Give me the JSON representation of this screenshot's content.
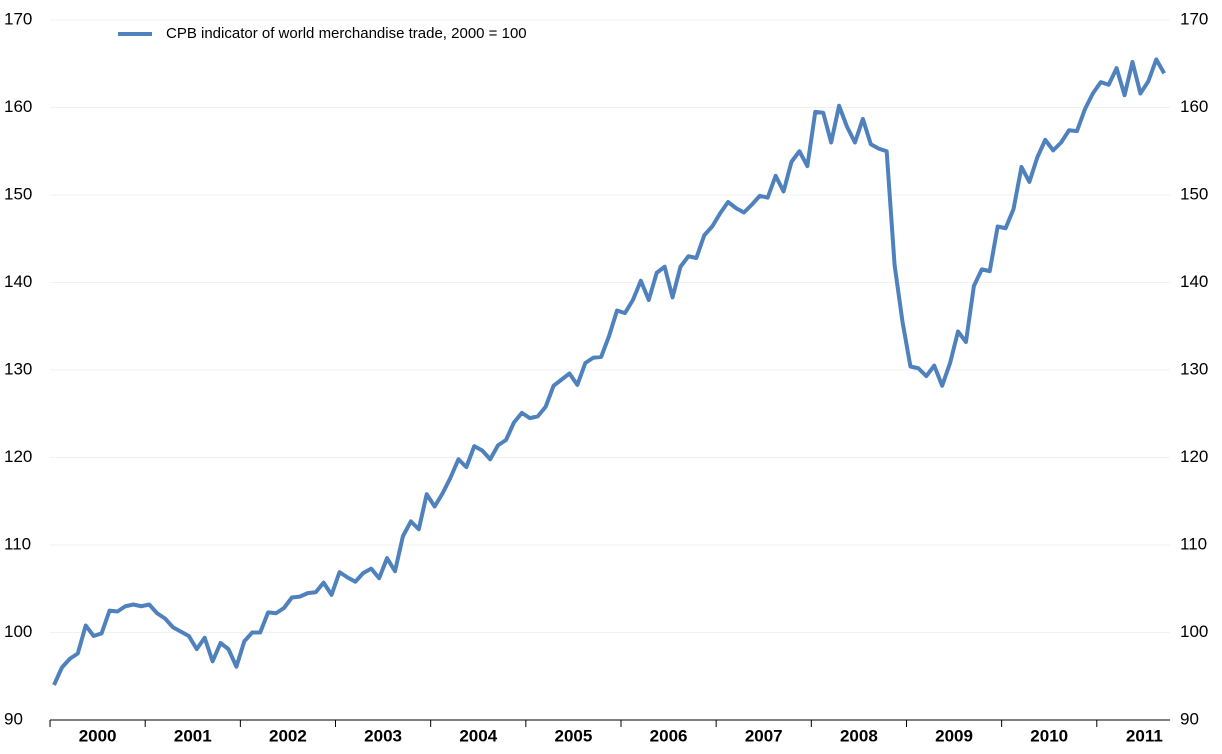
{
  "chart_data": {
    "type": "line",
    "categories": [
      null,
      null,
      null,
      null,
      null,
      "2000",
      null,
      null,
      null,
      null,
      null,
      null,
      null,
      null,
      null,
      null,
      null,
      "2001",
      null,
      null,
      null,
      null,
      null,
      null,
      null,
      null,
      null,
      null,
      null,
      "2002",
      null,
      null,
      null,
      null,
      null,
      null,
      null,
      null,
      null,
      null,
      null,
      "2003",
      null,
      null,
      null,
      null,
      null,
      null,
      null,
      null,
      null,
      null,
      null,
      "2004",
      null,
      null,
      null,
      null,
      null,
      null,
      null,
      null,
      null,
      null,
      null,
      "2005",
      null,
      null,
      null,
      null,
      null,
      null,
      null,
      null,
      null,
      null,
      null,
      "2006",
      null,
      null,
      null,
      null,
      null,
      null,
      null,
      null,
      null,
      null,
      null,
      "2007",
      null,
      null,
      null,
      null,
      null,
      null,
      null,
      null,
      null,
      null,
      null,
      "2008",
      null,
      null,
      null,
      null,
      null,
      null,
      null,
      null,
      null,
      null,
      null,
      "2009",
      null,
      null,
      null,
      null,
      null,
      null,
      null,
      null,
      null,
      null,
      null,
      "2010",
      null,
      null,
      null,
      null,
      null,
      null,
      null,
      null,
      null,
      null,
      null,
      "2011",
      null,
      null,
      null
    ],
    "series": [
      {
        "name": "CPB indicator of world merchandise trade, 2000 = 100",
        "color": "#4f81bd",
        "values": [
          94,
          96,
          97,
          97.6,
          100.8,
          99.6,
          99.9,
          102.5,
          102.4,
          103,
          103.2,
          103,
          103.2,
          102.2,
          101.6,
          100.6,
          100.1,
          99.6,
          98.1,
          99.4,
          96.7,
          98.8,
          98.1,
          96.1,
          99,
          100,
          100,
          102.3,
          102.2,
          102.8,
          104,
          104.1,
          104.5,
          104.6,
          105.7,
          104.3,
          106.9,
          106.3,
          105.8,
          106.8,
          107.3,
          106.2,
          108.5,
          107,
          111,
          112.7,
          111.8,
          115.8,
          114.4,
          115.9,
          117.7,
          119.8,
          118.9,
          121.3,
          120.8,
          119.8,
          121.4,
          122,
          124,
          125.1,
          124.5,
          124.7,
          125.8,
          128.2,
          128.9,
          129.6,
          128.3,
          130.8,
          131.4,
          131.5,
          133.9,
          136.8,
          136.5,
          138,
          140.2,
          138,
          141.1,
          141.8,
          138.3,
          141.8,
          143,
          142.8,
          145.4,
          146.4,
          147.9,
          149.2,
          148.5,
          148,
          148.9,
          149.9,
          149.7,
          152.2,
          150.4,
          153.8,
          155,
          153.3,
          159.5,
          159.4,
          156,
          160.2,
          157.8,
          156,
          158.7,
          155.8,
          155.3,
          155,
          142,
          135.5,
          130.4,
          130.2,
          129.3,
          130.5,
          128.2,
          130.8,
          134.4,
          133.2,
          139.6,
          141.5,
          141.3,
          146.4,
          146.2,
          148.4,
          153.2,
          151.5,
          154.3,
          156.3,
          155.1,
          156,
          157.4,
          157.3,
          159.8,
          161.6,
          162.9,
          162.6,
          164.5,
          161.4,
          165.2,
          161.6,
          163,
          165.5,
          163.9
        ]
      }
    ],
    "ylim": [
      90,
      170
    ],
    "yticks": [
      90,
      100,
      110,
      120,
      130,
      140,
      150,
      160,
      170
    ],
    "grid": true
  }
}
